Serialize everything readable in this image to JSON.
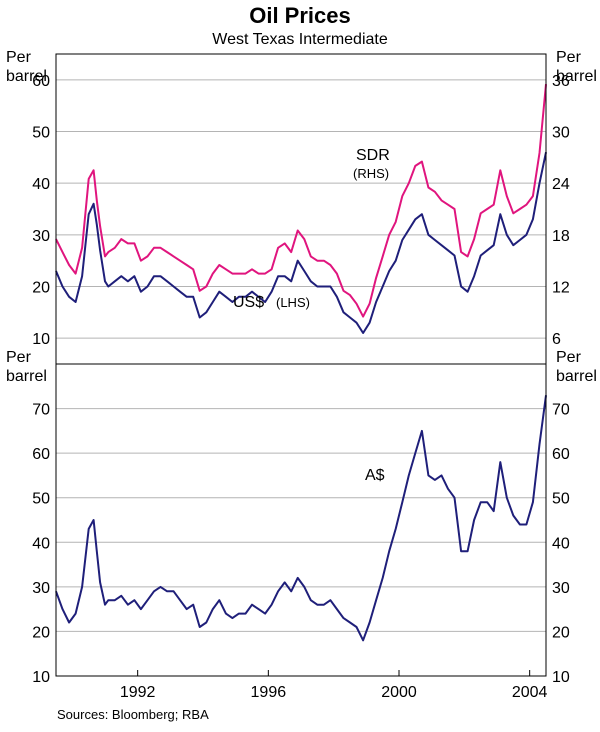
{
  "title": "Oil Prices",
  "subtitle": "West Texas Intermediate",
  "source": "Sources: Bloomberg; RBA",
  "colors": {
    "usd": "#1f1f7a",
    "sdr": "#e0157e",
    "aud": "#1f1f7a"
  },
  "chart_data": [
    {
      "type": "line",
      "panel": "top",
      "left_axis": {
        "unit_line1": "Per",
        "unit_line2": "barrel",
        "ylim": [
          5,
          65
        ],
        "ticks": [
          10,
          20,
          30,
          40,
          50,
          60
        ],
        "tick_labels": [
          "10",
          "20",
          "30",
          "40",
          "50",
          "60"
        ]
      },
      "right_axis": {
        "unit_line1": "Per",
        "unit_line2": "barrel",
        "ylim": [
          3,
          39
        ],
        "ticks": [
          6,
          12,
          18,
          24,
          30,
          36
        ],
        "tick_labels": [
          "6",
          "12",
          "18",
          "24",
          "30",
          "36"
        ]
      },
      "xlim": [
        1989.5,
        2004.5
      ],
      "grid": true,
      "series": [
        {
          "name": "US$",
          "label_main": "US$",
          "label_sub": "(LHS)",
          "axis": "left",
          "x": [
            1989.5,
            1989.7,
            1989.9,
            1990.1,
            1990.3,
            1990.5,
            1990.65,
            1990.75,
            1990.85,
            1991.0,
            1991.1,
            1991.3,
            1991.5,
            1991.7,
            1991.9,
            1992.1,
            1992.3,
            1992.5,
            1992.7,
            1992.9,
            1993.1,
            1993.3,
            1993.5,
            1993.7,
            1993.9,
            1994.1,
            1994.3,
            1994.5,
            1994.7,
            1994.9,
            1995.1,
            1995.3,
            1995.5,
            1995.7,
            1995.9,
            1996.1,
            1996.3,
            1996.5,
            1996.7,
            1996.9,
            1997.1,
            1997.3,
            1997.5,
            1997.7,
            1997.9,
            1998.1,
            1998.3,
            1998.5,
            1998.7,
            1998.9,
            1999.1,
            1999.3,
            1999.5,
            1999.7,
            1999.9,
            2000.1,
            2000.3,
            2000.5,
            2000.7,
            2000.9,
            2001.1,
            2001.3,
            2001.5,
            2001.7,
            2001.9,
            2002.1,
            2002.3,
            2002.5,
            2002.7,
            2002.9,
            2003.1,
            2003.3,
            2003.5,
            2003.7,
            2003.9,
            2004.1,
            2004.3,
            2004.5
          ],
          "values": [
            23,
            20,
            18,
            17,
            22,
            34,
            36,
            32,
            27,
            21,
            20,
            21,
            22,
            21,
            22,
            19,
            20,
            22,
            22,
            21,
            20,
            19,
            18,
            18,
            14,
            15,
            17,
            19,
            18,
            17,
            18,
            18,
            19,
            18,
            17,
            19,
            22,
            22,
            21,
            25,
            23,
            21,
            20,
            20,
            20,
            18,
            15,
            14,
            13,
            11,
            13,
            17,
            20,
            23,
            25,
            29,
            31,
            33,
            34,
            30,
            29,
            28,
            27,
            26,
            20,
            19,
            22,
            26,
            27,
            28,
            34,
            30,
            28,
            29,
            30,
            33,
            40,
            46
          ]
        },
        {
          "name": "SDR",
          "label_main": "SDR",
          "label_sub": "(RHS)",
          "axis": "right",
          "x": [
            1989.5,
            1989.7,
            1989.9,
            1990.1,
            1990.3,
            1990.5,
            1990.65,
            1990.75,
            1990.85,
            1991.0,
            1991.1,
            1991.3,
            1991.5,
            1991.7,
            1991.9,
            1992.1,
            1992.3,
            1992.5,
            1992.7,
            1992.9,
            1993.1,
            1993.3,
            1993.5,
            1993.7,
            1993.9,
            1994.1,
            1994.3,
            1994.5,
            1994.7,
            1994.9,
            1995.1,
            1995.3,
            1995.5,
            1995.7,
            1995.9,
            1996.1,
            1996.3,
            1996.5,
            1996.7,
            1996.9,
            1997.1,
            1997.3,
            1997.5,
            1997.7,
            1997.9,
            1998.1,
            1998.3,
            1998.5,
            1998.7,
            1998.9,
            1999.1,
            1999.3,
            1999.5,
            1999.7,
            1999.9,
            2000.1,
            2000.3,
            2000.5,
            2000.7,
            2000.9,
            2001.1,
            2001.3,
            2001.5,
            2001.7,
            2001.9,
            2002.1,
            2002.3,
            2002.5,
            2002.7,
            2002.9,
            2003.1,
            2003.3,
            2003.5,
            2003.7,
            2003.9,
            2004.1,
            2004.3,
            2004.5
          ],
          "values": [
            17.5,
            16,
            14.5,
            13.5,
            16.5,
            24.5,
            25.5,
            22,
            19,
            15.5,
            16,
            16.5,
            17.5,
            17,
            17,
            15,
            15.5,
            16.5,
            16.5,
            16,
            15.5,
            15,
            14.5,
            14,
            11.5,
            12,
            13.5,
            14.5,
            14,
            13.5,
            13.5,
            13.5,
            14,
            13.5,
            13.5,
            14,
            16.5,
            17,
            16,
            18.5,
            17.5,
            15.5,
            15,
            15,
            14.5,
            13.5,
            11.5,
            11,
            10,
            8.5,
            10,
            13,
            15.5,
            18,
            19.5,
            22.5,
            24,
            26,
            26.5,
            23.5,
            23,
            22,
            21.5,
            21,
            16,
            15.5,
            17.5,
            20.5,
            21,
            21.5,
            25.5,
            22.5,
            20.5,
            21,
            21.5,
            22.5,
            27.5,
            35.5
          ]
        }
      ]
    },
    {
      "type": "line",
      "panel": "bottom",
      "left_axis": {
        "unit_line1": "Per",
        "unit_line2": "barrel",
        "ylim": [
          10,
          80
        ],
        "ticks": [
          10,
          20,
          30,
          40,
          50,
          60,
          70
        ],
        "tick_labels": [
          "10",
          "20",
          "30",
          "40",
          "50",
          "60",
          "70"
        ]
      },
      "right_axis": {
        "unit_line1": "Per",
        "unit_line2": "barrel",
        "ylim": [
          10,
          80
        ],
        "ticks": [
          10,
          20,
          30,
          40,
          50,
          60,
          70
        ],
        "tick_labels": [
          "10",
          "20",
          "30",
          "40",
          "50",
          "60",
          "70"
        ]
      },
      "xlim": [
        1989.5,
        2004.5
      ],
      "x_ticks": [
        1992,
        1996,
        2000,
        2004
      ],
      "x_tick_labels": [
        "1992",
        "1996",
        "2000",
        "2004"
      ],
      "grid": true,
      "series": [
        {
          "name": "A$",
          "label_main": "A$",
          "label_sub": "",
          "axis": "left",
          "x": [
            1989.5,
            1989.7,
            1989.9,
            1990.1,
            1990.3,
            1990.5,
            1990.65,
            1990.75,
            1990.85,
            1991.0,
            1991.1,
            1991.3,
            1991.5,
            1991.7,
            1991.9,
            1992.1,
            1992.3,
            1992.5,
            1992.7,
            1992.9,
            1993.1,
            1993.3,
            1993.5,
            1993.7,
            1993.9,
            1994.1,
            1994.3,
            1994.5,
            1994.7,
            1994.9,
            1995.1,
            1995.3,
            1995.5,
            1995.7,
            1995.9,
            1996.1,
            1996.3,
            1996.5,
            1996.7,
            1996.9,
            1997.1,
            1997.3,
            1997.5,
            1997.7,
            1997.9,
            1998.1,
            1998.3,
            1998.5,
            1998.7,
            1998.9,
            1999.1,
            1999.3,
            1999.5,
            1999.7,
            1999.9,
            2000.1,
            2000.3,
            2000.5,
            2000.7,
            2000.9,
            2001.1,
            2001.3,
            2001.5,
            2001.7,
            2001.9,
            2002.1,
            2002.3,
            2002.5,
            2002.7,
            2002.9,
            2003.1,
            2003.3,
            2003.5,
            2003.7,
            2003.9,
            2004.1,
            2004.3,
            2004.5
          ],
          "values": [
            29,
            25,
            22,
            24,
            30,
            43,
            45,
            38,
            31,
            26,
            27,
            27,
            28,
            26,
            27,
            25,
            27,
            29,
            30,
            29,
            29,
            27,
            25,
            26,
            21,
            22,
            25,
            27,
            24,
            23,
            24,
            24,
            26,
            25,
            24,
            26,
            29,
            31,
            29,
            32,
            30,
            27,
            26,
            26,
            27,
            25,
            23,
            22,
            21,
            18,
            22,
            27,
            32,
            38,
            43,
            49,
            55,
            60,
            65,
            55,
            54,
            55,
            52,
            50,
            38,
            38,
            45,
            49,
            49,
            47,
            58,
            50,
            46,
            44,
            44,
            49,
            62,
            73
          ]
        }
      ]
    }
  ]
}
